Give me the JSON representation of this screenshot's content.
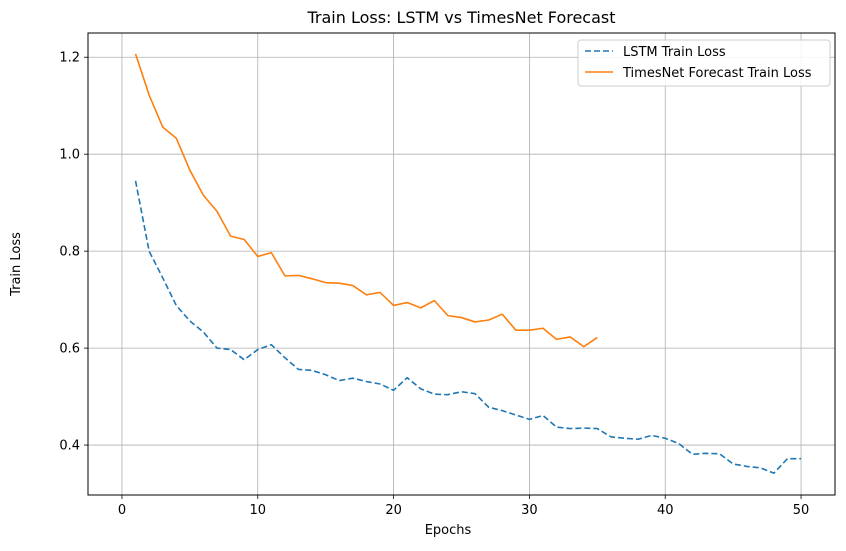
{
  "chart_data": {
    "type": "line",
    "title": "Train Loss: LSTM vs TimesNet Forecast",
    "xlabel": "Epochs",
    "ylabel": "Train Loss",
    "xlim": [
      -2.5,
      52.5
    ],
    "ylim": [
      0.297,
      1.25
    ],
    "xticks": [
      0,
      10,
      20,
      30,
      40,
      50
    ],
    "yticks": [
      0.4,
      0.6,
      0.8,
      1.0,
      1.2
    ],
    "xtick_labels": [
      "0",
      "10",
      "20",
      "30",
      "40",
      "50"
    ],
    "ytick_labels": [
      "0.4",
      "0.6",
      "0.8",
      "1.0",
      "1.2"
    ],
    "grid": true,
    "legend_position": "top-right",
    "series": [
      {
        "name": "LSTM Train Loss",
        "color": "#1f77b4",
        "style": "dashed",
        "x": [
          1,
          2,
          3,
          4,
          5,
          6,
          7,
          8,
          9,
          10,
          11,
          12,
          13,
          14,
          15,
          16,
          17,
          18,
          19,
          20,
          21,
          22,
          23,
          24,
          25,
          26,
          27,
          28,
          29,
          30,
          31,
          32,
          33,
          34,
          35,
          36,
          37,
          38,
          39,
          40,
          41,
          42,
          43,
          44,
          45,
          46,
          47,
          48,
          49,
          50
        ],
        "y": [
          0.945,
          0.8,
          0.745,
          0.688,
          0.656,
          0.633,
          0.6,
          0.597,
          0.576,
          0.597,
          0.607,
          0.58,
          0.556,
          0.554,
          0.545,
          0.533,
          0.538,
          0.531,
          0.526,
          0.513,
          0.539,
          0.516,
          0.505,
          0.504,
          0.51,
          0.506,
          0.478,
          0.471,
          0.462,
          0.453,
          0.461,
          0.437,
          0.434,
          0.435,
          0.434,
          0.417,
          0.414,
          0.412,
          0.42,
          0.414,
          0.403,
          0.381,
          0.383,
          0.382,
          0.361,
          0.356,
          0.353,
          0.342,
          0.372,
          0.372
        ]
      },
      {
        "name": "TimesNet Forecast Train Loss",
        "color": "#ff7f0e",
        "style": "solid",
        "x": [
          1,
          2,
          3,
          4,
          5,
          6,
          7,
          8,
          9,
          10,
          11,
          12,
          13,
          14,
          15,
          16,
          17,
          18,
          19,
          20,
          21,
          22,
          23,
          24,
          25,
          26,
          27,
          28,
          29,
          30,
          31,
          32,
          33,
          34,
          35
        ],
        "y": [
          1.207,
          1.122,
          1.056,
          1.033,
          0.967,
          0.915,
          0.882,
          0.831,
          0.824,
          0.789,
          0.797,
          0.749,
          0.75,
          0.743,
          0.735,
          0.734,
          0.729,
          0.71,
          0.715,
          0.688,
          0.694,
          0.683,
          0.698,
          0.667,
          0.663,
          0.654,
          0.658,
          0.67,
          0.637,
          0.637,
          0.641,
          0.618,
          0.623,
          0.603,
          0.622
        ]
      }
    ]
  }
}
